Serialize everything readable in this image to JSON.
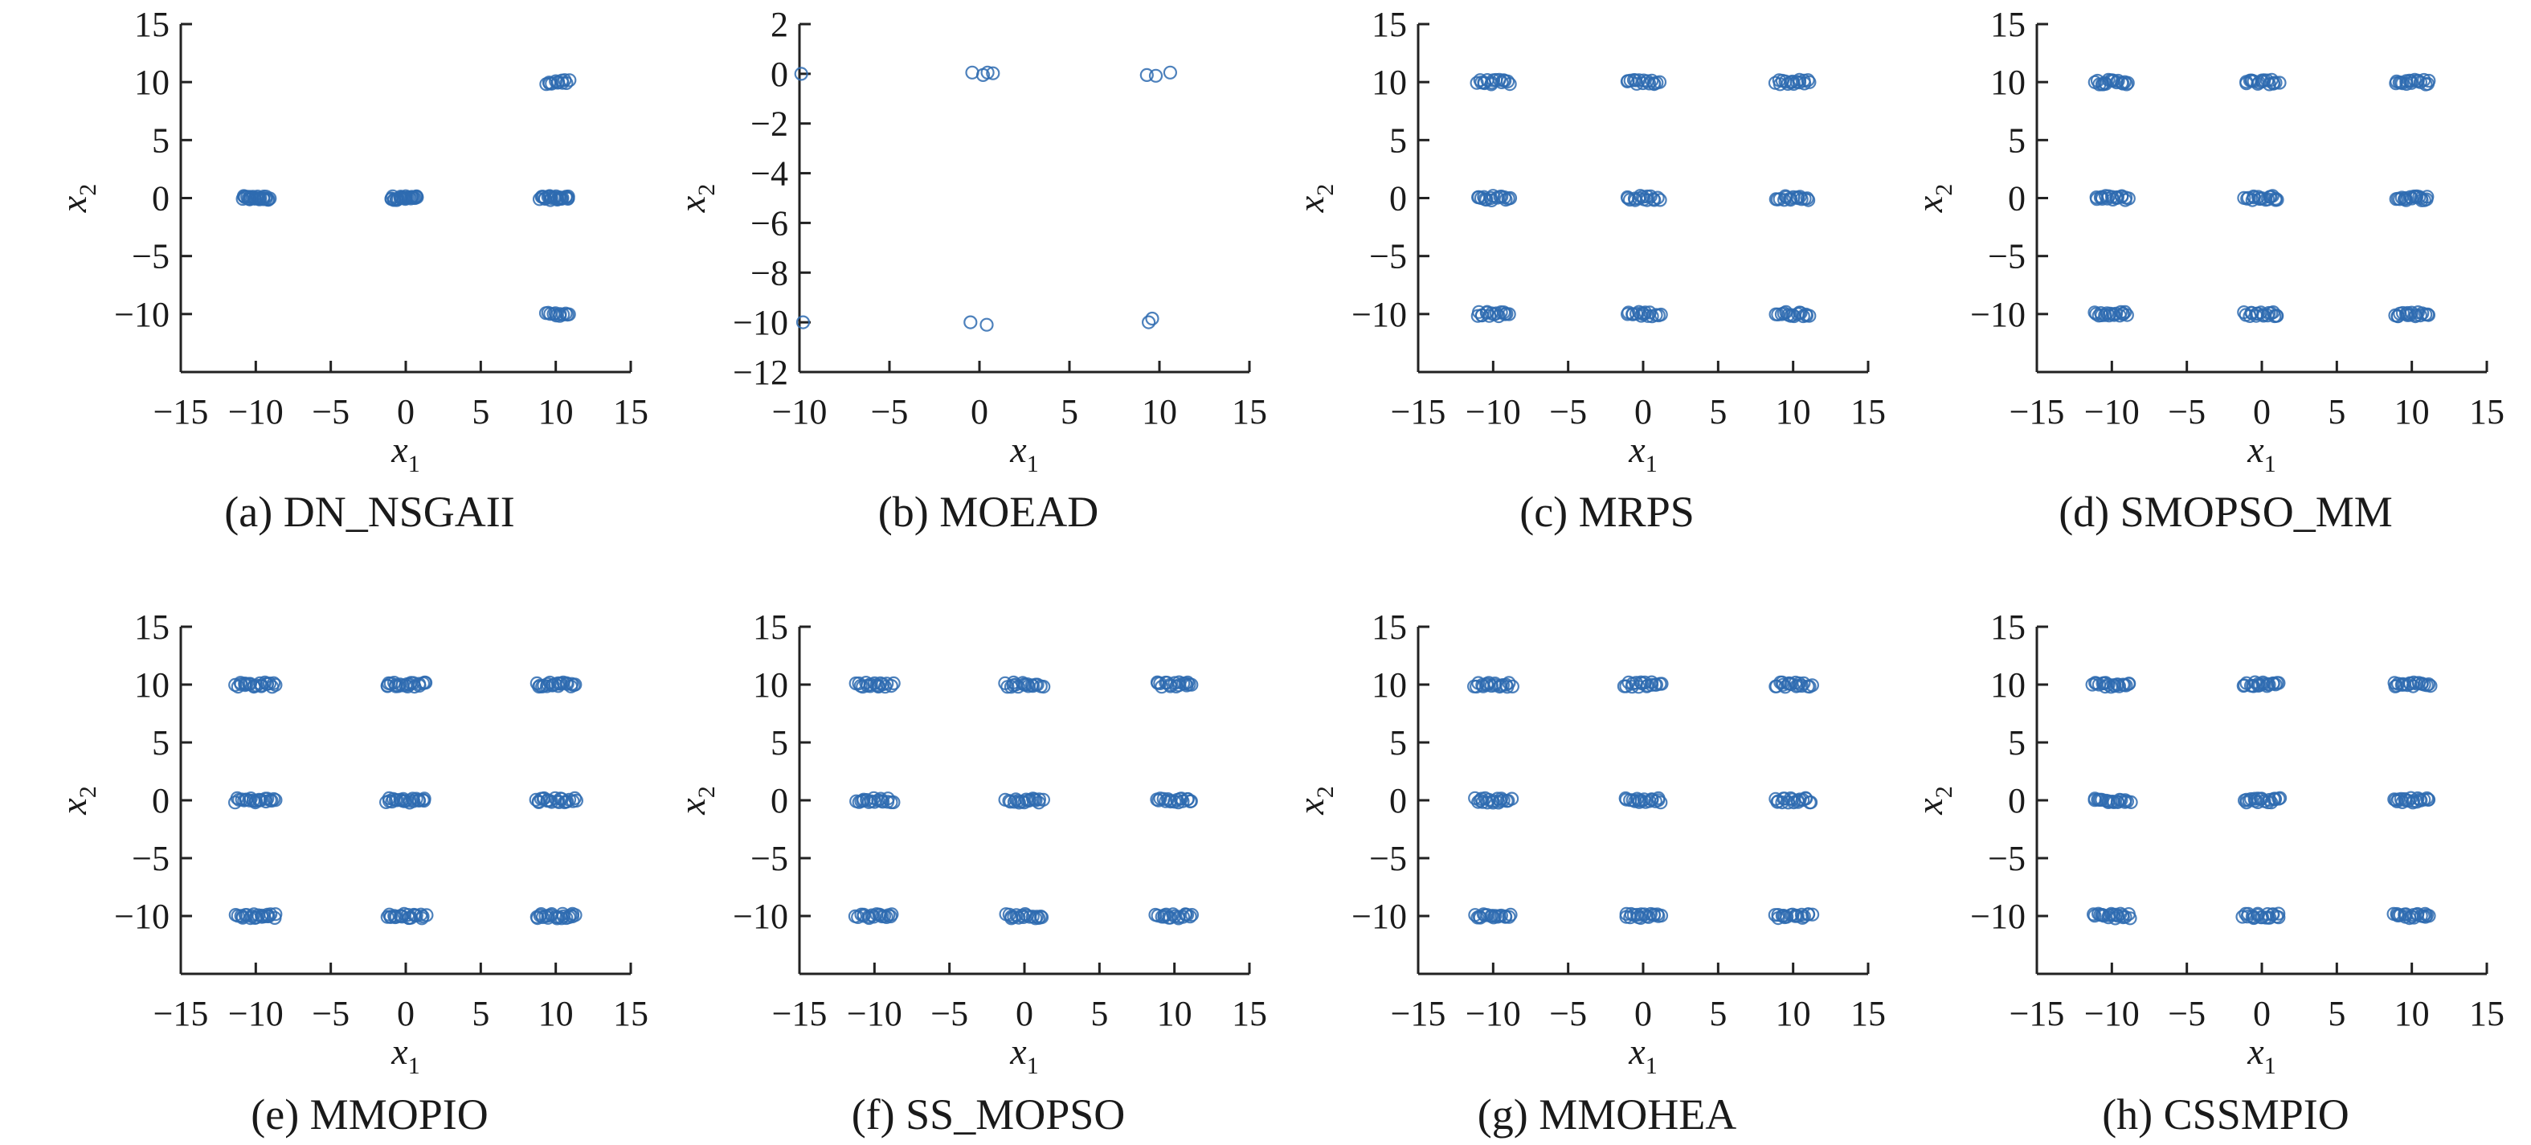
{
  "colors": {
    "marker": "#2e6bb0",
    "axis": "#222222"
  },
  "chart_data": [
    {
      "type": "scatter",
      "caption": "(a) DN_NSGAII",
      "xlabel": "x",
      "xlabel_sub": "1",
      "ylabel": "x",
      "ylabel_sub": "2",
      "xlim": [
        -15,
        15
      ],
      "ylim": [
        -15,
        15
      ],
      "xticks": [
        -15,
        -10,
        -5,
        0,
        5,
        10,
        15
      ],
      "yticks": [
        -10,
        -5,
        0,
        5,
        10,
        15
      ],
      "xtick_labels": [
        "−15",
        "−10",
        "−5",
        "0",
        "5",
        "10",
        "15"
      ],
      "ytick_labels": [
        "−10",
        "−5",
        "0",
        "5",
        "10",
        "15"
      ],
      "clusters": [
        {
          "x": [
            -10.9,
            -9.1
          ],
          "y": 0,
          "n": 26
        },
        {
          "x": [
            -1.0,
            0.8
          ],
          "y": 0,
          "n": 26
        },
        {
          "x": [
            9.0,
            10.9
          ],
          "y": 0,
          "n": 26
        },
        {
          "x": [
            9.4,
            10.9
          ],
          "y": 10,
          "n": 12
        },
        {
          "x": [
            9.4,
            10.9
          ],
          "y": -10,
          "n": 12
        }
      ]
    },
    {
      "type": "scatter",
      "caption": "(b) MOEAD",
      "xlabel": "x",
      "xlabel_sub": "1",
      "ylabel": "x",
      "ylabel_sub": "2",
      "xlim": [
        -10,
        15
      ],
      "ylim": [
        -12,
        2
      ],
      "xticks": [
        -10,
        -5,
        0,
        5,
        10,
        15
      ],
      "yticks": [
        -12,
        -10,
        -8,
        -6,
        -4,
        -2,
        0,
        2
      ],
      "xtick_labels": [
        "−10",
        "−5",
        "0",
        "5",
        "10",
        "15"
      ],
      "ytick_labels": [
        "−12",
        "−10",
        "−8",
        "−6",
        "−4",
        "−2",
        "0",
        "2"
      ],
      "points": [
        [
          -9.9,
          0.0
        ],
        [
          -0.4,
          0.05
        ],
        [
          0.2,
          -0.05
        ],
        [
          0.45,
          0.05
        ],
        [
          0.75,
          0.02
        ],
        [
          9.3,
          -0.05
        ],
        [
          9.8,
          -0.08
        ],
        [
          10.6,
          0.05
        ],
        [
          -9.8,
          -10.0
        ],
        [
          -0.5,
          -10.0
        ],
        [
          0.4,
          -10.1
        ],
        [
          9.4,
          -10.0
        ],
        [
          9.6,
          -9.85
        ]
      ]
    },
    {
      "type": "scatter",
      "caption": "(c) MRPS",
      "xlabel": "x",
      "xlabel_sub": "1",
      "ylabel": "x",
      "ylabel_sub": "2",
      "xlim": [
        -15,
        15
      ],
      "ylim": [
        -15,
        15
      ],
      "xticks": [
        -15,
        -10,
        -5,
        0,
        5,
        10,
        15
      ],
      "yticks": [
        -10,
        -5,
        0,
        5,
        10,
        15
      ],
      "xtick_labels": [
        "−15",
        "−10",
        "−5",
        "0",
        "5",
        "10",
        "15"
      ],
      "ytick_labels": [
        "−10",
        "−5",
        "0",
        "5",
        "10",
        "15"
      ],
      "grid_clusters": {
        "xc": [
          -10,
          0,
          10
        ],
        "yc": [
          10,
          0,
          -10
        ],
        "half_width": 1.1,
        "n": 16
      }
    },
    {
      "type": "scatter",
      "caption": "(d) SMOPSO_MM",
      "xlabel": "x",
      "xlabel_sub": "1",
      "ylabel": "x",
      "ylabel_sub": "2",
      "xlim": [
        -15,
        15
      ],
      "ylim": [
        -15,
        15
      ],
      "xticks": [
        -15,
        -10,
        -5,
        0,
        5,
        10,
        15
      ],
      "yticks": [
        -10,
        -5,
        0,
        5,
        10,
        15
      ],
      "xtick_labels": [
        "−15",
        "−10",
        "−5",
        "0",
        "5",
        "10",
        "15"
      ],
      "ytick_labels": [
        "−10",
        "−5",
        "0",
        "5",
        "10",
        "15"
      ],
      "grid_clusters": {
        "xc": [
          -10,
          0,
          10
        ],
        "yc": [
          10,
          0,
          -10
        ],
        "half_width": 1.1,
        "n": 18
      }
    },
    {
      "type": "scatter",
      "caption": "(e) MMOPIO",
      "xlabel": "x",
      "xlabel_sub": "1",
      "ylabel": "x",
      "ylabel_sub": "2",
      "xlim": [
        -15,
        15
      ],
      "ylim": [
        -15,
        15
      ],
      "xticks": [
        -15,
        -10,
        -5,
        0,
        5,
        10,
        15
      ],
      "yticks": [
        -10,
        -5,
        0,
        5,
        10,
        15
      ],
      "xtick_labels": [
        "−15",
        "−10",
        "−5",
        "0",
        "5",
        "10",
        "15"
      ],
      "ytick_labels": [
        "−10",
        "−5",
        "0",
        "5",
        "10",
        "15"
      ],
      "grid_clusters": {
        "xc": [
          -10,
          0,
          10
        ],
        "yc": [
          10,
          0,
          -10
        ],
        "half_width": 1.3,
        "n": 22
      }
    },
    {
      "type": "scatter",
      "caption": "(f) SS_MOPSO",
      "xlabel": "x",
      "xlabel_sub": "1",
      "ylabel": "x",
      "ylabel_sub": "2",
      "xlim": [
        -15,
        15
      ],
      "ylim": [
        -15,
        15
      ],
      "xticks": [
        -15,
        -10,
        -5,
        0,
        5,
        10,
        15
      ],
      "yticks": [
        -10,
        -5,
        0,
        5,
        10,
        15
      ],
      "xtick_labels": [
        "−15",
        "−10",
        "−5",
        "0",
        "5",
        "10",
        "15"
      ],
      "ytick_labels": [
        "−10",
        "−5",
        "0",
        "5",
        "10",
        "15"
      ],
      "grid_clusters": {
        "xc": [
          -10,
          0,
          10
        ],
        "yc": [
          10,
          0,
          -10
        ],
        "half_width": 1.2,
        "n": 18
      }
    },
    {
      "type": "scatter",
      "caption": "(g) MMOHEA",
      "xlabel": "x",
      "xlabel_sub": "1",
      "ylabel": "x",
      "ylabel_sub": "2",
      "xlim": [
        -15,
        15
      ],
      "ylim": [
        -15,
        15
      ],
      "xticks": [
        -15,
        -10,
        -5,
        0,
        5,
        10,
        15
      ],
      "yticks": [
        -10,
        -5,
        0,
        5,
        10,
        15
      ],
      "xtick_labels": [
        "−15",
        "−10",
        "−5",
        "0",
        "5",
        "10",
        "15"
      ],
      "ytick_labels": [
        "−10",
        "−5",
        "0",
        "5",
        "10",
        "15"
      ],
      "grid_clusters": {
        "xc": [
          -10,
          0,
          10
        ],
        "yc": [
          10,
          0,
          -10
        ],
        "half_width": 1.2,
        "n": 18
      }
    },
    {
      "type": "scatter",
      "caption": "(h) CSSMPIO",
      "xlabel": "x",
      "xlabel_sub": "1",
      "ylabel": "x",
      "ylabel_sub": "2",
      "xlim": [
        -15,
        15
      ],
      "ylim": [
        -15,
        15
      ],
      "xticks": [
        -15,
        -10,
        -5,
        0,
        5,
        10,
        15
      ],
      "yticks": [
        -10,
        -5,
        0,
        5,
        10,
        15
      ],
      "xtick_labels": [
        "−15",
        "−10",
        "−5",
        "0",
        "5",
        "10",
        "15"
      ],
      "ytick_labels": [
        "−10",
        "−5",
        "0",
        "5",
        "10",
        "15"
      ],
      "grid_clusters": {
        "xc": [
          -10,
          0,
          10
        ],
        "yc": [
          10,
          0,
          -10
        ],
        "half_width": 1.2,
        "n": 20
      }
    }
  ]
}
